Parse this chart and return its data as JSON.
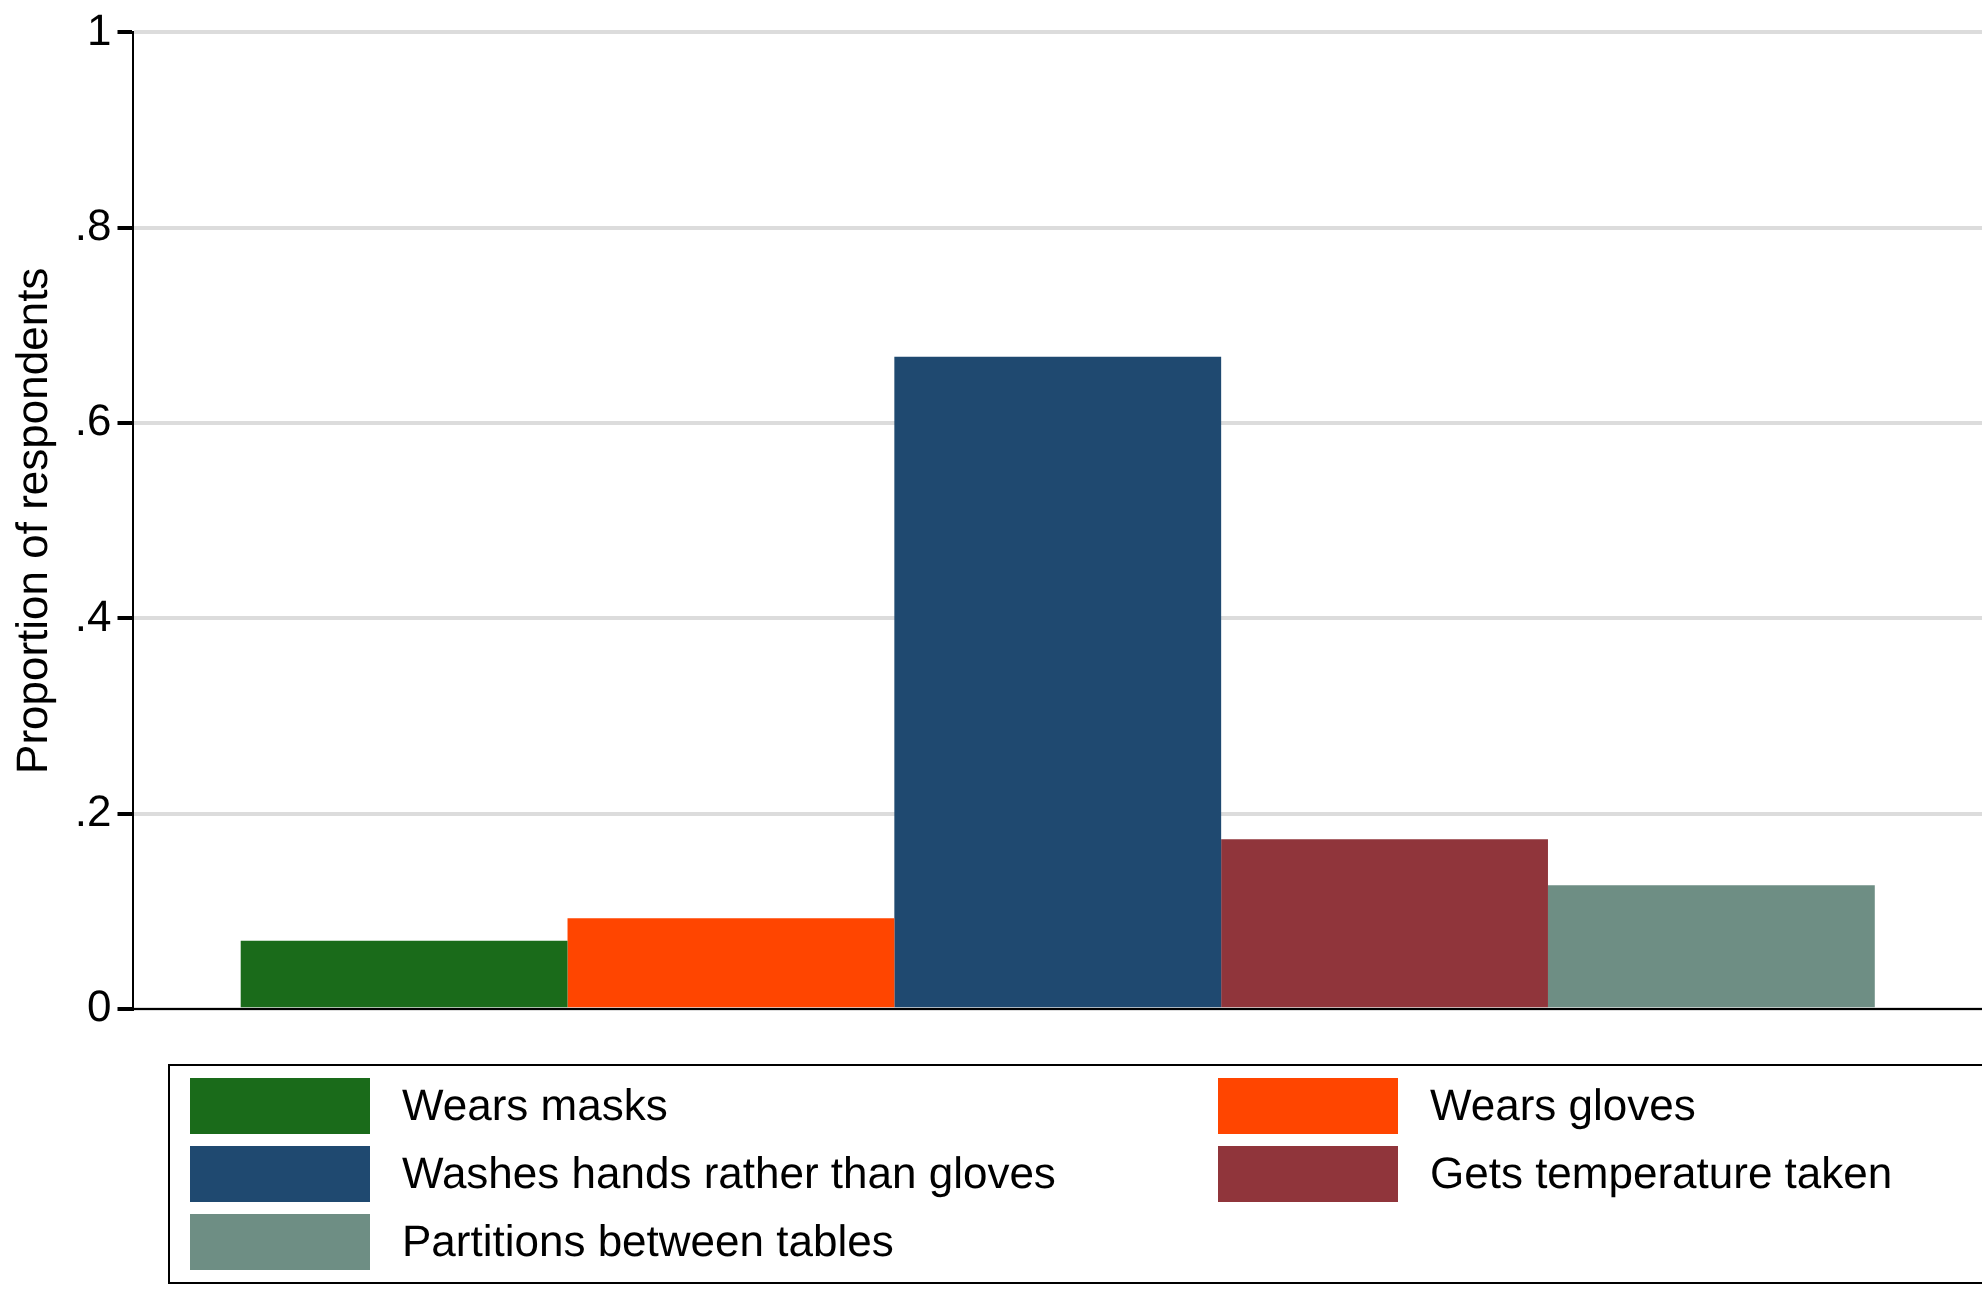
{
  "chart_data": {
    "type": "bar",
    "ylabel": "Proportion of respondents",
    "categories": [
      null
    ],
    "series": [
      {
        "name": "Wears masks",
        "color": "#1a6b1a",
        "values": [
          0.07
        ]
      },
      {
        "name": "Wears gloves",
        "color": "#ff4500",
        "values": [
          0.093
        ]
      },
      {
        "name": "Washes hands rather than gloves",
        "color": "#1f4970",
        "values": [
          0.668
        ]
      },
      {
        "name": "Gets temperature taken",
        "color": "#90353b",
        "values": [
          0.174
        ]
      },
      {
        "name": "Partitions between tables",
        "color": "#6e8e84",
        "values": [
          0.127
        ]
      }
    ],
    "ylim": [
      0,
      1
    ],
    "yticks": [
      0,
      {
        "value": 0.2,
        "label": ".2"
      },
      {
        "value": 0.4,
        "label": ".4"
      },
      {
        "value": 0.6,
        "label": ".6"
      },
      {
        "value": 0.8,
        "label": ".8"
      },
      1
    ],
    "grid": "y",
    "legend": "bottom"
  }
}
